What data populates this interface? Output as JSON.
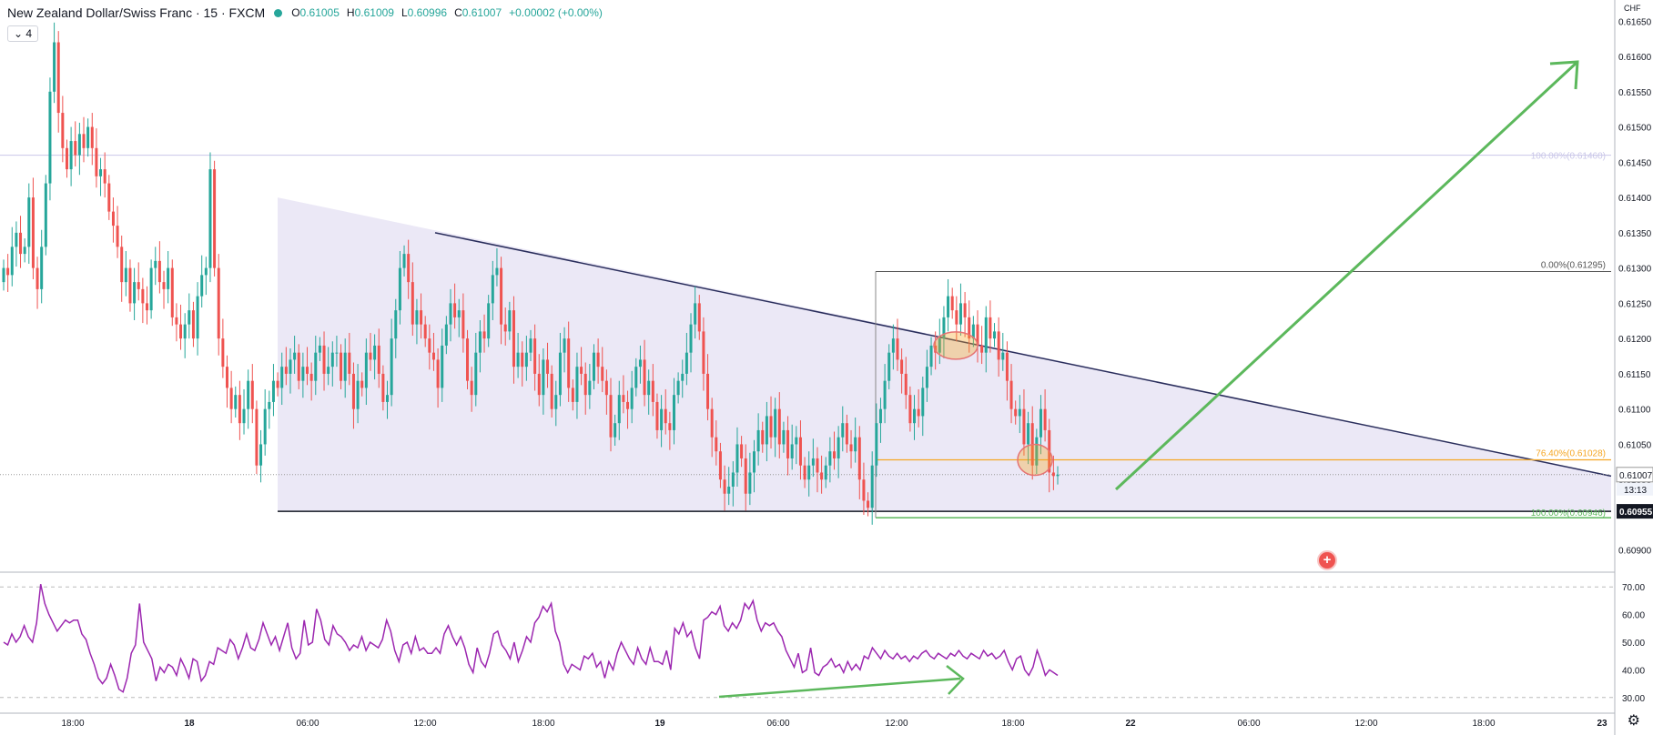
{
  "legend": {
    "symbol": "New Zealand Dollar/Swiss Franc · 15 · FXCM",
    "o_label": "O",
    "o": "0.61005",
    "h_label": "H",
    "h": "0.61009",
    "l_label": "L",
    "l": "0.60996",
    "c_label": "C",
    "c": "0.61007",
    "change": "+0.00002 (+0.00%)",
    "indicator_count": "4"
  },
  "price_axis": {
    "currency": "CHF",
    "current_price": "0.61007",
    "countdown": "13:13",
    "low_marker": "0.60955"
  },
  "fib": {
    "top_level": "100.00%(0.61460)",
    "zero": "0.00%(0.61295)",
    "level_764": "76.40%(0.61028)",
    "bottom_level": "100.00%(0.60946)"
  },
  "colors": {
    "up": "#26a69a",
    "down": "#ef5350",
    "rsi": "#9c27b0",
    "triangle_fill": "#e8e4f5",
    "arrow": "#5cb85c",
    "fib_orange": "#f5a623"
  },
  "chart_data": [
    {
      "type": "candlestick",
      "title": "New Zealand Dollar/Swiss Franc, 15, FXCM",
      "ylim": [
        0.6087,
        0.6168
      ],
      "y_ticks": [
        "0.61650",
        "0.61600",
        "0.61550",
        "0.61500",
        "0.61450",
        "0.61400",
        "0.61350",
        "0.61300",
        "0.61250",
        "0.61200",
        "0.61150",
        "0.61100",
        "0.61050",
        "0.61000",
        "0.60950",
        "0.60900"
      ],
      "x_ticks": [
        "18:00",
        "18",
        "06:00",
        "12:00",
        "18:00",
        "19",
        "06:00",
        "12:00",
        "18:00",
        "22",
        "06:00",
        "12:00",
        "18:00",
        "23"
      ],
      "close": [
        0.613,
        0.6129,
        0.6133,
        0.6135,
        0.6132,
        0.6133,
        0.614,
        0.613,
        0.6127,
        0.6133,
        0.6142,
        0.6155,
        0.6162,
        0.6152,
        0.6147,
        0.6144,
        0.6148,
        0.6146,
        0.6149,
        0.6147,
        0.615,
        0.6147,
        0.6143,
        0.6144,
        0.6142,
        0.6138,
        0.6136,
        0.6133,
        0.6128,
        0.613,
        0.6125,
        0.6128,
        0.6127,
        0.6125,
        0.6124,
        0.613,
        0.6131,
        0.6128,
        0.6127,
        0.613,
        0.6123,
        0.6122,
        0.612,
        0.6122,
        0.6124,
        0.612,
        0.6126,
        0.6129,
        0.613,
        0.6144,
        0.613,
        0.612,
        0.6116,
        0.6113,
        0.611,
        0.6112,
        0.6108,
        0.611,
        0.6114,
        0.611,
        0.6102,
        0.6105,
        0.611,
        0.6111,
        0.6114,
        0.6113,
        0.6116,
        0.6115,
        0.6117,
        0.6118,
        0.6114,
        0.6116,
        0.6115,
        0.6114,
        0.6118,
        0.6119,
        0.6115,
        0.6116,
        0.6118,
        0.6118,
        0.6114,
        0.6118,
        0.6115,
        0.611,
        0.6114,
        0.6113,
        0.6118,
        0.6117,
        0.6119,
        0.6115,
        0.6111,
        0.6112,
        0.612,
        0.6124,
        0.613,
        0.6132,
        0.6128,
        0.6122,
        0.6124,
        0.6122,
        0.612,
        0.6118,
        0.6117,
        0.6113,
        0.6119,
        0.6122,
        0.6125,
        0.6123,
        0.6124,
        0.612,
        0.6114,
        0.6112,
        0.6118,
        0.6121,
        0.612,
        0.6125,
        0.6129,
        0.613,
        0.6122,
        0.6121,
        0.6124,
        0.6116,
        0.6118,
        0.6116,
        0.6118,
        0.612,
        0.6115,
        0.6112,
        0.6117,
        0.6115,
        0.611,
        0.6112,
        0.6118,
        0.612,
        0.6113,
        0.6111,
        0.6116,
        0.6115,
        0.6112,
        0.6114,
        0.6118,
        0.6116,
        0.6114,
        0.6112,
        0.6106,
        0.6108,
        0.6112,
        0.6111,
        0.611,
        0.6113,
        0.6116,
        0.6117,
        0.6112,
        0.6114,
        0.6111,
        0.6107,
        0.611,
        0.6108,
        0.6107,
        0.6112,
        0.6114,
        0.6115,
        0.6118,
        0.6122,
        0.6125,
        0.6121,
        0.6115,
        0.611,
        0.6106,
        0.6104,
        0.61,
        0.6098,
        0.6099,
        0.6101,
        0.6105,
        0.6103,
        0.6098,
        0.6101,
        0.6104,
        0.6107,
        0.6105,
        0.6109,
        0.6106,
        0.611,
        0.6105,
        0.6107,
        0.6103,
        0.6105,
        0.6106,
        0.6102,
        0.61,
        0.6102,
        0.6103,
        0.6101,
        0.61,
        0.6102,
        0.6104,
        0.6103,
        0.6106,
        0.6108,
        0.6105,
        0.6104,
        0.6106,
        0.61,
        0.6097,
        0.6096,
        0.6102,
        0.6108,
        0.611,
        0.6114,
        0.6118,
        0.612,
        0.6117,
        0.6115,
        0.6112,
        0.6108,
        0.611,
        0.6109,
        0.6113,
        0.6116,
        0.6119,
        0.6118,
        0.612,
        0.6123,
        0.6126,
        0.6124,
        0.6122,
        0.6125,
        0.6123,
        0.612,
        0.6122,
        0.6119,
        0.6118,
        0.6123,
        0.612,
        0.6121,
        0.6117,
        0.6118,
        0.6114,
        0.611,
        0.6109,
        0.611,
        0.6105,
        0.6108,
        0.6102,
        0.6106,
        0.611,
        0.6107,
        0.6101,
        0.61005,
        0.61007
      ],
      "rsi": {
        "ylim": [
          25,
          75
        ],
        "y_ticks": [
          "70.00",
          "60.00",
          "50.00",
          "40.00",
          "30.00"
        ],
        "values": [
          50,
          49,
          53,
          50,
          52,
          56,
          52,
          50,
          57,
          71,
          64,
          60,
          57,
          54,
          56,
          58,
          57,
          58,
          58,
          53,
          51,
          46,
          42,
          37,
          35,
          37,
          42,
          38,
          33,
          32,
          37,
          46,
          49,
          64,
          50,
          47,
          44,
          36,
          41,
          39,
          42,
          41,
          38,
          44,
          41,
          37,
          44,
          43,
          36,
          38,
          43,
          42,
          48,
          47,
          46,
          51,
          49,
          44,
          48,
          53,
          48,
          47,
          51,
          57,
          53,
          49,
          52,
          47,
          52,
          57,
          48,
          44,
          46,
          58,
          49,
          50,
          62,
          58,
          51,
          49,
          56,
          53,
          52,
          50,
          47,
          49,
          48,
          52,
          47,
          50,
          49,
          48,
          51,
          58,
          54,
          47,
          43,
          49,
          50,
          46,
          52,
          47,
          48,
          46,
          46,
          48,
          46,
          53,
          56,
          52,
          49,
          52,
          48,
          42,
          39,
          48,
          43,
          41,
          46,
          53,
          54,
          49,
          47,
          44,
          50,
          43,
          47,
          52,
          50,
          57,
          59,
          63,
          61,
          64,
          54,
          50,
          42,
          39,
          42,
          41,
          40,
          45,
          44,
          46,
          41,
          43,
          37,
          43,
          40,
          46,
          50,
          47,
          44,
          42,
          48,
          44,
          42,
          48,
          43,
          43,
          42,
          47,
          40,
          55,
          53,
          57,
          52,
          54,
          48,
          44,
          58,
          59,
          61,
          60,
          63,
          56,
          54,
          57,
          55,
          58,
          64,
          62,
          65,
          58,
          54,
          57,
          56,
          57,
          54,
          52,
          47,
          44,
          41,
          46,
          39,
          40,
          48,
          39,
          38,
          41,
          42,
          44,
          41,
          42,
          39,
          43,
          40,
          42,
          40,
          45,
          44,
          48,
          46,
          44,
          47,
          45,
          44,
          46,
          44,
          45,
          43,
          45,
          44,
          46,
          47,
          45,
          44,
          46,
          45,
          44,
          46,
          45,
          47,
          45,
          44,
          46,
          45,
          44,
          47,
          45,
          46,
          44,
          45,
          47,
          43,
          40,
          44,
          45,
          40,
          38,
          41,
          47,
          43,
          38,
          40,
          39,
          38
        ]
      }
    }
  ]
}
